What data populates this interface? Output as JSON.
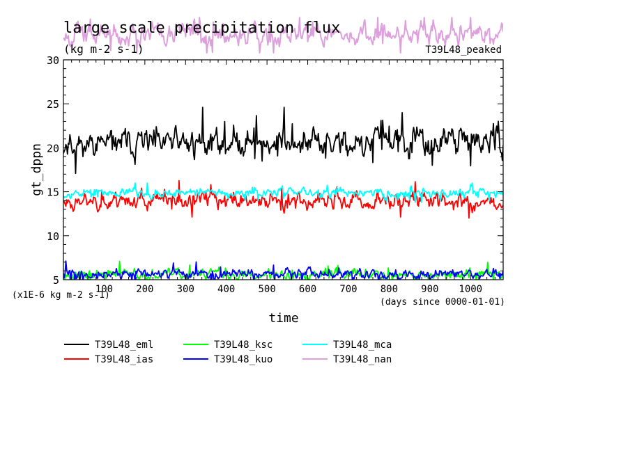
{
  "chart_data": {
    "type": "line",
    "title": "large scale precipitation flux",
    "units": "(kg m-2 s-1)",
    "scale_note": "(x1E-6 kg m-2 s-1)",
    "run_label": "T39L48_peaked",
    "xlabel": "time",
    "x_unit_note": "(days since 0000-01-01)",
    "ylabel": "gt_dppn",
    "xlim": [
      0,
      1080
    ],
    "ylim": [
      5,
      30
    ],
    "x_ticks": [
      100,
      200,
      300,
      400,
      500,
      600,
      700,
      800,
      900,
      1000
    ],
    "y_ticks": [
      5,
      10,
      15,
      20,
      25,
      30
    ],
    "legend_position": "below",
    "series": [
      {
        "name": "T39L48_eml",
        "color": "#000000",
        "mean": 20.6,
        "amp": 1.3,
        "min": 16.0,
        "max": 24.6,
        "seed": 11
      },
      {
        "name": "T39L48_ias",
        "color": "#ff0000",
        "mean": 14.0,
        "amp": 0.8,
        "min": 12.0,
        "max": 16.4,
        "seed": 23
      },
      {
        "name": "T39L48_ksc",
        "color": "#00ff00",
        "mean": 5.6,
        "amp": 0.5,
        "min": 4.8,
        "max": 7.4,
        "seed": 37
      },
      {
        "name": "T39L48_kuo",
        "color": "#0000ff",
        "mean": 5.6,
        "amp": 0.45,
        "min": 4.7,
        "max": 7.5,
        "seed": 41
      },
      {
        "name": "T39L48_mca",
        "color": "#00ffff",
        "mean": 14.9,
        "amp": 0.45,
        "min": 13.8,
        "max": 16.0,
        "seed": 53
      },
      {
        "name": "T39L48_nan",
        "color": "#dda0dd",
        "mean": 33.0,
        "amp": 1.0,
        "min": 30.8,
        "max": 34.8,
        "seed": 67
      }
    ]
  }
}
